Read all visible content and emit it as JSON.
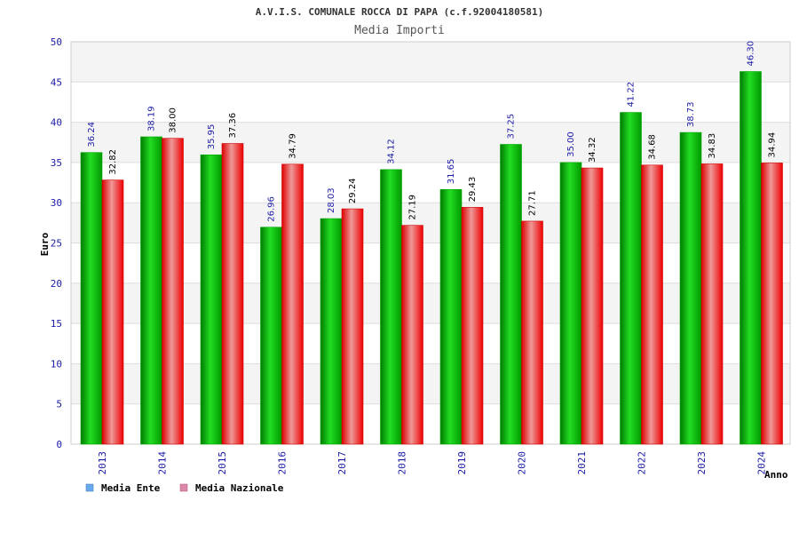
{
  "chart_data": {
    "type": "bar",
    "title": "A.V.I.S. COMUNALE ROCCA DI PAPA (c.f.92004180581)",
    "subtitle": "Media Importi",
    "xlabel": "Anno",
    "ylabel": "Euro",
    "ylim": [
      0,
      50
    ],
    "yticks": [
      0,
      5,
      10,
      15,
      20,
      25,
      30,
      35,
      40,
      45,
      50
    ],
    "categories": [
      "2013",
      "2014",
      "2015",
      "2016",
      "2017",
      "2018",
      "2019",
      "2020",
      "2021",
      "2022",
      "2023",
      "2024"
    ],
    "series": [
      {
        "name": "Media Ente",
        "values": [
          36.24,
          38.19,
          35.95,
          26.96,
          28.03,
          34.12,
          31.65,
          37.25,
          35.0,
          41.22,
          38.73,
          46.3
        ],
        "labels": [
          "36.24",
          "38.19",
          "35.95",
          "26.96",
          "28.03",
          "34.12",
          "31.65",
          "37.25",
          "35.00",
          "41.22",
          "38.73",
          "46.30"
        ],
        "color": "#00cc00",
        "legend_color": "#66aaee"
      },
      {
        "name": "Media Nazionale",
        "values": [
          32.82,
          38.0,
          37.36,
          34.79,
          29.24,
          27.19,
          29.43,
          27.71,
          34.32,
          34.68,
          34.83,
          34.94
        ],
        "labels": [
          "32.82",
          "38.00",
          "37.36",
          "34.79",
          "29.24",
          "27.19",
          "29.43",
          "27.71",
          "34.32",
          "34.68",
          "34.83",
          "34.94"
        ],
        "color": "#ee0000",
        "legend_color": "#dd88aa"
      }
    ],
    "grid": true,
    "legend": "bottom-left"
  }
}
